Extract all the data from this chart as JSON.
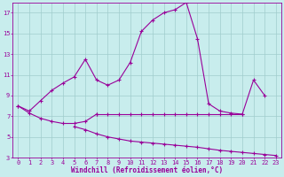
{
  "xlabel": "Windchill (Refroidissement éolien,°C)",
  "background_color": "#c8eded",
  "grid_color": "#a0cccc",
  "line_color": "#990099",
  "ylim": [
    3,
    18
  ],
  "xlim": [
    -0.5,
    23.5
  ],
  "yticks": [
    3,
    5,
    7,
    9,
    11,
    13,
    15,
    17
  ],
  "xticks": [
    0,
    1,
    2,
    3,
    4,
    5,
    6,
    7,
    8,
    9,
    10,
    11,
    12,
    13,
    14,
    15,
    16,
    17,
    18,
    19,
    20,
    21,
    22,
    23
  ],
  "line1_x": [
    0,
    1,
    2,
    3,
    4,
    5,
    6,
    7,
    8,
    9,
    10,
    11,
    12,
    13,
    14,
    15,
    16,
    17,
    18,
    19,
    20,
    21,
    22
  ],
  "line1_y": [
    8.0,
    7.5,
    8.5,
    9.5,
    10.2,
    10.8,
    12.5,
    10.5,
    10.0,
    10.5,
    12.2,
    15.2,
    16.3,
    17.0,
    17.3,
    18.0,
    14.5,
    8.2,
    7.5,
    7.3,
    7.2,
    10.5,
    9.0
  ],
  "line2_x": [
    0,
    1,
    2,
    3,
    4,
    5,
    6,
    7
  ],
  "line2_y": [
    8.0,
    7.3,
    6.8,
    6.5,
    6.3,
    6.3,
    6.5,
    7.2
  ],
  "line3_x": [
    7,
    8,
    9,
    10,
    11,
    12,
    13,
    14,
    15,
    16,
    17,
    18,
    19,
    20
  ],
  "line3_y": [
    7.2,
    7.2,
    7.2,
    7.2,
    7.2,
    7.2,
    7.2,
    7.2,
    7.2,
    7.2,
    7.2,
    7.2,
    7.2,
    7.2
  ],
  "line4_x": [
    5,
    6,
    7,
    8,
    9,
    10,
    11,
    12,
    13,
    14,
    15,
    16,
    17,
    18,
    19,
    20,
    21,
    22,
    23
  ],
  "line4_y": [
    6.0,
    5.7,
    5.3,
    5.0,
    4.8,
    4.6,
    4.5,
    4.4,
    4.3,
    4.2,
    4.1,
    4.0,
    3.85,
    3.7,
    3.6,
    3.5,
    3.4,
    3.3,
    3.2
  ]
}
